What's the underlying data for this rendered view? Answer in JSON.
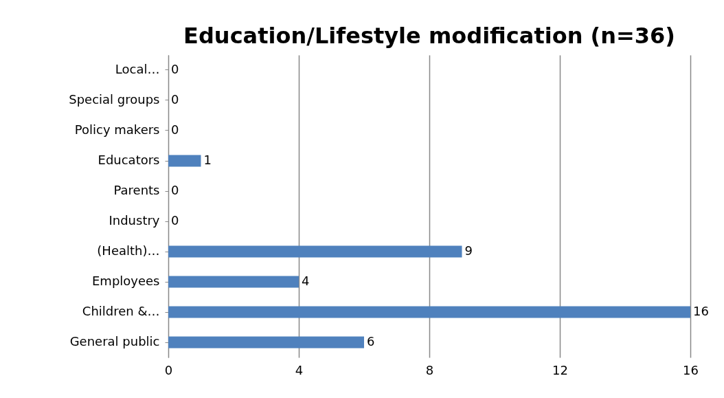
{
  "chart_data": {
    "type": "bar",
    "orientation": "horizontal",
    "title": "Education/Lifestyle modification (n=36)",
    "categories": [
      "Local…",
      "Special groups",
      "Policy makers",
      "Educators",
      "Parents",
      "Industry",
      "(Health)…",
      "Employees",
      "Children &…",
      "General public"
    ],
    "values": [
      0,
      0,
      0,
      1,
      0,
      0,
      9,
      4,
      16,
      6
    ],
    "color": "#4f81bd",
    "xlim": [
      0,
      16
    ],
    "xticks": [
      0,
      4,
      8,
      12,
      16
    ],
    "grid": "x",
    "data_labels": true
  }
}
